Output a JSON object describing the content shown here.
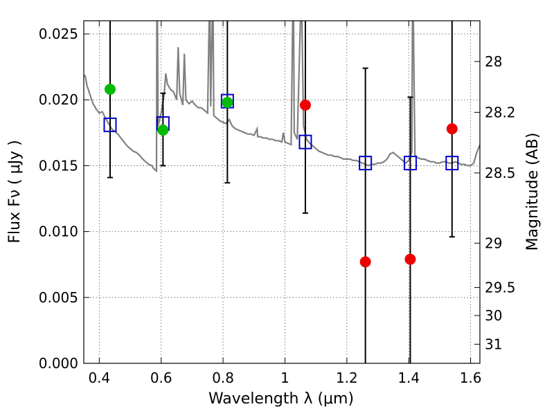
{
  "chart_data": {
    "type": "scatter",
    "xlabel": "Wavelength  λ (μm)",
    "ylabel": "Flux  Fν  ( μJy )",
    "y2label": "Magnitude (AB)",
    "xlim": [
      0.35,
      1.63
    ],
    "ylim": [
      0.0,
      0.026
    ],
    "grid": true,
    "xticks": [
      0.4,
      0.6,
      0.8,
      1.0,
      1.2,
      1.4,
      1.6
    ],
    "xtick_labels": [
      "0.4",
      "0.6",
      "0.8",
      "1",
      "1.2",
      "1.4",
      "1.6"
    ],
    "yticks": [
      0.0,
      0.005,
      0.01,
      0.015,
      0.02,
      0.025
    ],
    "ytick_labels": [
      "0.000",
      "0.005",
      "0.010",
      "0.015",
      "0.020",
      "0.025"
    ],
    "y2ticks": [
      {
        "label": "28",
        "flux": 0.02291
      },
      {
        "label": "28.2",
        "flux": 0.01905
      },
      {
        "label": "28.5",
        "flux": 0.01445
      },
      {
        "label": "29",
        "flux": 0.00912
      },
      {
        "label": "29.5",
        "flux": 0.00575
      },
      {
        "label": "30",
        "flux": 0.00363
      },
      {
        "label": "31",
        "flux": 0.00145
      }
    ],
    "observed_points": [
      {
        "x": 0.435,
        "y": 0.0208,
        "color": "#00bb00",
        "err_lo": 0.0141,
        "err_hi": 0.026
      },
      {
        "x": 0.606,
        "y": 0.0177,
        "color": "#00bb00",
        "err_lo": 0.015,
        "err_hi": 0.0205
      },
      {
        "x": 0.814,
        "y": 0.0198,
        "color": "#00bb00",
        "err_lo": 0.0137,
        "err_hi": 0.026
      },
      {
        "x": 1.066,
        "y": 0.0196,
        "color": "#ee0000",
        "err_lo": 0.0114,
        "err_hi": 0.026
      },
      {
        "x": 1.26,
        "y": 0.0077,
        "color": "#ee0000",
        "err_lo": 0.0,
        "err_hi": 0.0224
      },
      {
        "x": 1.405,
        "y": 0.0079,
        "color": "#ee0000",
        "err_lo": 0.0,
        "err_hi": 0.0202
      },
      {
        "x": 1.54,
        "y": 0.0178,
        "color": "#ee0000",
        "err_lo": 0.0096,
        "err_hi": 0.026
      }
    ],
    "model_points": [
      {
        "x": 0.435,
        "y": 0.0181
      },
      {
        "x": 0.606,
        "y": 0.0182
      },
      {
        "x": 0.814,
        "y": 0.0199
      },
      {
        "x": 1.066,
        "y": 0.0168
      },
      {
        "x": 1.26,
        "y": 0.0152
      },
      {
        "x": 1.405,
        "y": 0.0152
      },
      {
        "x": 1.54,
        "y": 0.0152
      }
    ],
    "model_spectrum": {
      "color": "#808080",
      "points": [
        [
          0.35,
          0.0219
        ],
        [
          0.355,
          0.0218
        ],
        [
          0.36,
          0.0211
        ],
        [
          0.37,
          0.0204
        ],
        [
          0.38,
          0.0197
        ],
        [
          0.39,
          0.0193
        ],
        [
          0.4,
          0.019
        ],
        [
          0.41,
          0.0191
        ],
        [
          0.42,
          0.0186
        ],
        [
          0.43,
          0.0182
        ],
        [
          0.44,
          0.0178
        ],
        [
          0.45,
          0.0176
        ],
        [
          0.46,
          0.0174
        ],
        [
          0.47,
          0.0171
        ],
        [
          0.48,
          0.0168
        ],
        [
          0.49,
          0.0165
        ],
        [
          0.5,
          0.0163
        ],
        [
          0.51,
          0.0161
        ],
        [
          0.52,
          0.016
        ],
        [
          0.53,
          0.0158
        ],
        [
          0.54,
          0.0155
        ],
        [
          0.55,
          0.0153
        ],
        [
          0.56,
          0.0151
        ],
        [
          0.57,
          0.015
        ],
        [
          0.575,
          0.0148
        ],
        [
          0.58,
          0.0147
        ],
        [
          0.585,
          0.0146
        ],
        [
          0.586,
          0.026
        ],
        [
          0.588,
          0.026
        ],
        [
          0.59,
          0.018
        ],
        [
          0.6,
          0.019
        ],
        [
          0.61,
          0.0205
        ],
        [
          0.615,
          0.022
        ],
        [
          0.62,
          0.0212
        ],
        [
          0.63,
          0.0208
        ],
        [
          0.64,
          0.0206
        ],
        [
          0.65,
          0.02
        ],
        [
          0.655,
          0.024
        ],
        [
          0.66,
          0.0205
        ],
        [
          0.67,
          0.0196
        ],
        [
          0.675,
          0.0235
        ],
        [
          0.68,
          0.02
        ],
        [
          0.69,
          0.0197
        ],
        [
          0.7,
          0.0199
        ],
        [
          0.71,
          0.0196
        ],
        [
          0.72,
          0.0194
        ],
        [
          0.73,
          0.0194
        ],
        [
          0.74,
          0.0192
        ],
        [
          0.75,
          0.019
        ],
        [
          0.755,
          0.026
        ],
        [
          0.758,
          0.026
        ],
        [
          0.76,
          0.0195
        ],
        [
          0.765,
          0.026
        ],
        [
          0.768,
          0.026
        ],
        [
          0.77,
          0.0188
        ],
        [
          0.78,
          0.0186
        ],
        [
          0.79,
          0.0184
        ],
        [
          0.8,
          0.0183
        ],
        [
          0.81,
          0.0182
        ],
        [
          0.82,
          0.0185
        ],
        [
          0.83,
          0.018
        ],
        [
          0.84,
          0.0178
        ],
        [
          0.85,
          0.0177
        ],
        [
          0.86,
          0.0176
        ],
        [
          0.87,
          0.0175
        ],
        [
          0.88,
          0.0174
        ],
        [
          0.89,
          0.0174
        ],
        [
          0.9,
          0.0173
        ],
        [
          0.91,
          0.0178
        ],
        [
          0.912,
          0.0172
        ],
        [
          0.92,
          0.0172
        ],
        [
          0.93,
          0.0171
        ],
        [
          0.94,
          0.0171
        ],
        [
          0.95,
          0.017
        ],
        [
          0.96,
          0.017
        ],
        [
          0.97,
          0.0169
        ],
        [
          0.98,
          0.0169
        ],
        [
          0.99,
          0.0168
        ],
        [
          0.995,
          0.0175
        ],
        [
          1.0,
          0.0168
        ],
        [
          1.01,
          0.0167
        ],
        [
          1.02,
          0.0166
        ],
        [
          1.025,
          0.026
        ],
        [
          1.028,
          0.026
        ],
        [
          1.03,
          0.0175
        ],
        [
          1.04,
          0.017
        ],
        [
          1.05,
          0.026
        ],
        [
          1.055,
          0.026
        ],
        [
          1.06,
          0.018
        ],
        [
          1.07,
          0.017
        ],
        [
          1.08,
          0.0167
        ],
        [
          1.09,
          0.0165
        ],
        [
          1.1,
          0.0163
        ],
        [
          1.11,
          0.0161
        ],
        [
          1.12,
          0.016
        ],
        [
          1.13,
          0.0159
        ],
        [
          1.14,
          0.0158
        ],
        [
          1.15,
          0.0158
        ],
        [
          1.16,
          0.0157
        ],
        [
          1.17,
          0.0157
        ],
        [
          1.18,
          0.0156
        ],
        [
          1.19,
          0.0155
        ],
        [
          1.2,
          0.0155
        ],
        [
          1.21,
          0.0155
        ],
        [
          1.22,
          0.0154
        ],
        [
          1.23,
          0.0154
        ],
        [
          1.24,
          0.0153
        ],
        [
          1.25,
          0.0152
        ],
        [
          1.26,
          0.0151
        ],
        [
          1.27,
          0.015
        ],
        [
          1.28,
          0.0151
        ],
        [
          1.29,
          0.0151
        ],
        [
          1.3,
          0.0152
        ],
        [
          1.31,
          0.0152
        ],
        [
          1.32,
          0.0153
        ],
        [
          1.33,
          0.0155
        ],
        [
          1.34,
          0.0159
        ],
        [
          1.35,
          0.016
        ],
        [
          1.36,
          0.0158
        ],
        [
          1.37,
          0.0156
        ],
        [
          1.38,
          0.0154
        ],
        [
          1.39,
          0.0152
        ],
        [
          1.4,
          0.0154
        ],
        [
          1.41,
          0.016
        ],
        [
          1.412,
          0.026
        ],
        [
          1.415,
          0.026
        ],
        [
          1.42,
          0.0158
        ],
        [
          1.43,
          0.0156
        ],
        [
          1.44,
          0.0155
        ],
        [
          1.45,
          0.0155
        ],
        [
          1.46,
          0.0154
        ],
        [
          1.47,
          0.0153
        ],
        [
          1.48,
          0.0153
        ],
        [
          1.49,
          0.0152
        ],
        [
          1.5,
          0.0152
        ],
        [
          1.51,
          0.0153
        ],
        [
          1.52,
          0.0153
        ],
        [
          1.53,
          0.0152
        ],
        [
          1.54,
          0.0152
        ],
        [
          1.55,
          0.0153
        ],
        [
          1.56,
          0.0152
        ],
        [
          1.57,
          0.0151
        ],
        [
          1.58,
          0.0151
        ],
        [
          1.59,
          0.015
        ],
        [
          1.6,
          0.015
        ],
        [
          1.61,
          0.0152
        ],
        [
          1.62,
          0.016
        ],
        [
          1.63,
          0.0166
        ]
      ]
    },
    "colors": {
      "detected": "#00bb00",
      "non_detected": "#ee0000",
      "model_square": "#0000cc",
      "spectrum": "#808080",
      "error_bar": "#000000"
    }
  }
}
